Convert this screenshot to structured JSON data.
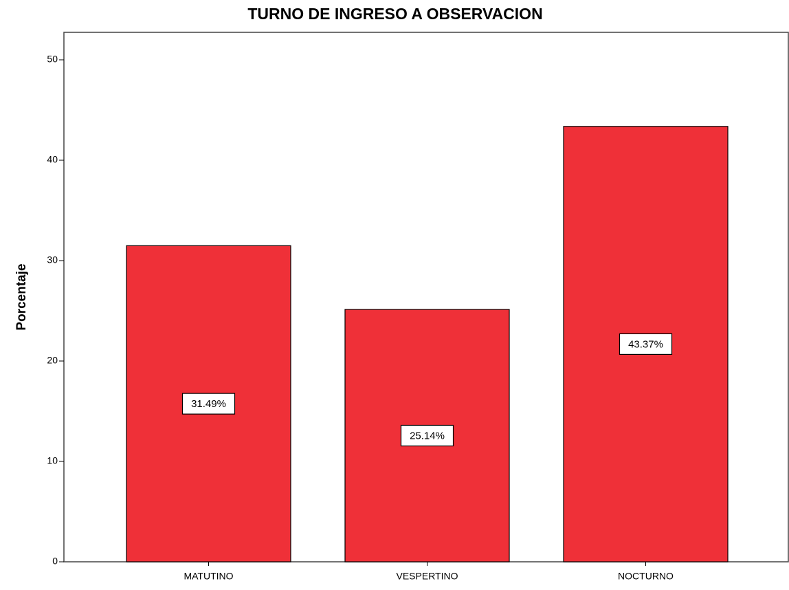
{
  "chart_data": {
    "type": "bar",
    "title": "TURNO DE INGRESO A OBSERVACION",
    "y_label": "Porcentaje",
    "categories": [
      "MATUTINO",
      "VESPERTINO",
      "NOCTURNO"
    ],
    "values": [
      31.49,
      25.14,
      43.37
    ],
    "value_labels": [
      "31.49%",
      "25.14%",
      "43.37%"
    ],
    "color": "#ef3038",
    "ylim": [
      0,
      52.74
    ],
    "yticks": [
      0,
      10,
      20,
      30,
      40,
      50
    ],
    "grid": false
  }
}
